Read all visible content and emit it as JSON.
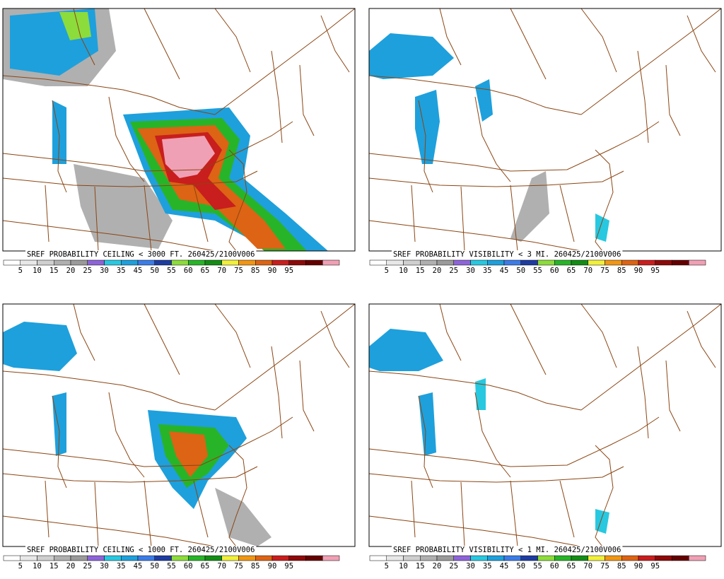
{
  "panels": [
    {
      "title": "SREF PROBABILITY CEILING < 3000 FT. 260425/2100V006"
    },
    {
      "title": "SREF PROBABILITY VISIBILITY < 3 MI. 260425/2100V006"
    },
    {
      "title": "SREF PROBABILITY CEILING < 1000 FT. 260425/2100V006"
    },
    {
      "title": "SREF PROBABILITY VISIBILITY < 1 MI. 260425/2100V006"
    }
  ],
  "colorbar": {
    "labels": [
      "5",
      "10",
      "15",
      "20",
      "25",
      "30",
      "35",
      "45",
      "50",
      "55",
      "60",
      "65",
      "70",
      "75",
      "85",
      "90",
      "95"
    ],
    "colors": [
      "#ffffff",
      "#e8e8e8",
      "#cfcfcf",
      "#b0b0b0",
      "#9a9a9a",
      "#8c64d8",
      "#28c8e0",
      "#1ea0dc",
      "#3c7ce6",
      "#1e3ca0",
      "#8cdc3c",
      "#28b428",
      "#148c14",
      "#f0f03c",
      "#f09614",
      "#dc6414",
      "#c81e1e",
      "#8c0a0a",
      "#640000",
      "#f0a0b4"
    ]
  }
}
